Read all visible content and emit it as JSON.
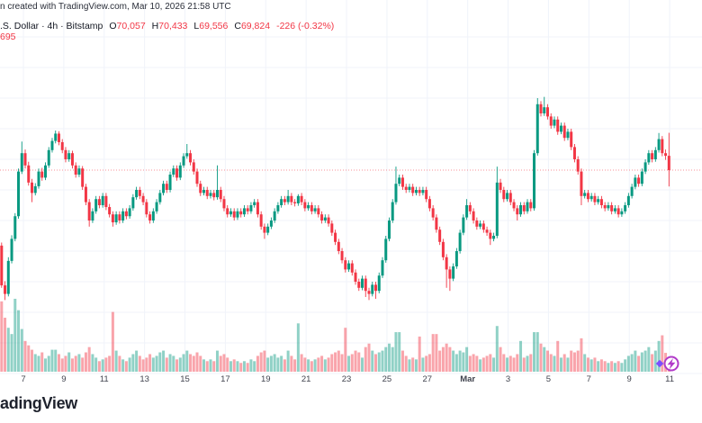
{
  "attribution": "n created with TradingView.com, Mar 10, 2026 21:58 UTC",
  "header": {
    "symbol_text": ".S. Dollar · 4h · Bitstamp",
    "ohlc": [
      {
        "label": "O",
        "value": "70,057"
      },
      {
        "label": "H",
        "value": "70,433"
      },
      {
        "label": "L",
        "value": "69,556"
      },
      {
        "label": "C",
        "value": "69,824"
      }
    ],
    "change_text": "-226 (-0.32%)",
    "volume_value": "695"
  },
  "watermark": "adingView",
  "colors": {
    "up": "#089981",
    "down": "#f23645",
    "grid": "#f0f3fa",
    "price_line": "#f23645",
    "axis_text": "#40434e",
    "marker_ring": "#b13ac9",
    "marker_diamond": "#7c4dff"
  },
  "event_marker": {
    "icon": "lightning-bolt"
  },
  "chart_data": {
    "type": "candlestick",
    "interval": "4h",
    "exchange": "Bitstamp",
    "last_candle": {
      "open": 70057,
      "high": 70433,
      "low": 69556,
      "close": 69824,
      "change": -226,
      "change_pct": -0.32
    },
    "price_line": 69824,
    "ylim": [
      67600,
      71800
    ],
    "grid": true,
    "x_ticks": [
      "7",
      "9",
      "11",
      "13",
      "15",
      "17",
      "19",
      "21",
      "23",
      "25",
      "27",
      "Mar",
      "3",
      "5",
      "7",
      "9",
      "11"
    ],
    "columns": [
      "open",
      "high",
      "low",
      "close",
      "volume"
    ],
    "candles": [
      [
        68590,
        68640,
        67900,
        67940,
        5600
      ],
      [
        67940,
        68010,
        67700,
        67800,
        4300
      ],
      [
        67800,
        68400,
        67760,
        68340,
        3500
      ],
      [
        68340,
        68760,
        68300,
        68700,
        3000
      ],
      [
        68700,
        69120,
        68660,
        69070,
        5810
      ],
      [
        69070,
        69850,
        69030,
        69800,
        4900
      ],
      [
        69800,
        70290,
        69760,
        70100,
        3400
      ],
      [
        70100,
        70160,
        69850,
        69900,
        2450
      ],
      [
        69900,
        69960,
        69570,
        69620,
        2100
      ],
      [
        69620,
        69680,
        69300,
        69450,
        1750
      ],
      [
        69450,
        69610,
        69410,
        69560,
        1400
      ],
      [
        69560,
        69850,
        69520,
        69800,
        1260
      ],
      [
        69800,
        69860,
        69650,
        69700,
        1540
      ],
      [
        69700,
        69950,
        69660,
        69900,
        1050
      ],
      [
        69900,
        70200,
        69860,
        70150,
        1260
      ],
      [
        70150,
        70350,
        70110,
        70300,
        1750
      ],
      [
        70300,
        70470,
        70260,
        70420,
        1750
      ],
      [
        70420,
        70460,
        70230,
        70280,
        1400
      ],
      [
        70280,
        70330,
        70100,
        70150,
        1050
      ],
      [
        70150,
        70200,
        69950,
        70000,
        1260
      ],
      [
        70000,
        70150,
        69960,
        70100,
        1540
      ],
      [
        70100,
        70140,
        69850,
        69900,
        1050
      ],
      [
        69900,
        69950,
        69700,
        69750,
        1260
      ],
      [
        69750,
        69900,
        69710,
        69850,
        1400
      ],
      [
        69850,
        69890,
        69500,
        69550,
        1120
      ],
      [
        69550,
        69600,
        69250,
        69300,
        1540
      ],
      [
        69300,
        69350,
        68900,
        69000,
        1960
      ],
      [
        69000,
        69200,
        68960,
        69150,
        1400
      ],
      [
        69150,
        69400,
        69110,
        69350,
        1120
      ],
      [
        69350,
        69400,
        69200,
        69250,
        840
      ],
      [
        69250,
        69450,
        69210,
        69400,
        980
      ],
      [
        69400,
        69450,
        69170,
        69220,
        1120
      ],
      [
        69220,
        69270,
        69050,
        69100,
        1260
      ],
      [
        69100,
        69150,
        68900,
        68970,
        4760
      ],
      [
        68970,
        69150,
        68930,
        69100,
        1680
      ],
      [
        69100,
        69150,
        68950,
        69000,
        1260
      ],
      [
        69000,
        69200,
        68960,
        69150,
        980
      ],
      [
        69150,
        69200,
        69020,
        69070,
        840
      ],
      [
        69070,
        69250,
        69030,
        69200,
        1120
      ],
      [
        69200,
        69430,
        69160,
        69380,
        1400
      ],
      [
        69380,
        69550,
        69340,
        69500,
        1680
      ],
      [
        69500,
        69550,
        69350,
        69400,
        1260
      ],
      [
        69400,
        69450,
        69250,
        69300,
        980
      ],
      [
        69300,
        69350,
        69050,
        69100,
        1120
      ],
      [
        69100,
        69150,
        68950,
        69000,
        1400
      ],
      [
        69000,
        69200,
        68960,
        69150,
        1120
      ],
      [
        69150,
        69350,
        69110,
        69300,
        1260
      ],
      [
        69300,
        69500,
        69260,
        69450,
        1540
      ],
      [
        69450,
        69650,
        69410,
        69600,
        1680
      ],
      [
        69600,
        69650,
        69450,
        69500,
        1120
      ],
      [
        69500,
        69800,
        69460,
        69750,
        1400
      ],
      [
        69750,
        69900,
        69710,
        69850,
        1260
      ],
      [
        69850,
        69900,
        69650,
        69700,
        980
      ],
      [
        69700,
        69950,
        69660,
        69900,
        1120
      ],
      [
        69900,
        70100,
        69860,
        70050,
        1400
      ],
      [
        70050,
        70250,
        70010,
        70100,
        1680
      ],
      [
        70100,
        70150,
        69900,
        69950,
        1400
      ],
      [
        69950,
        70000,
        69750,
        69800,
        1260
      ],
      [
        69800,
        69850,
        69550,
        69600,
        1540
      ],
      [
        69600,
        69650,
        69400,
        69450,
        1260
      ],
      [
        69450,
        69550,
        69410,
        69500,
        980
      ],
      [
        69500,
        69550,
        69350,
        69400,
        840
      ],
      [
        69400,
        69500,
        69360,
        69450,
        980
      ],
      [
        69450,
        69500,
        69330,
        69380,
        840
      ],
      [
        69380,
        69900,
        69340,
        69500,
        1680
      ],
      [
        69500,
        69550,
        69300,
        69350,
        1260
      ],
      [
        69350,
        69400,
        69150,
        69200,
        1400
      ],
      [
        69200,
        69250,
        69050,
        69100,
        1120
      ],
      [
        69100,
        69200,
        69060,
        69150,
        840
      ],
      [
        69150,
        69200,
        69000,
        69050,
        980
      ],
      [
        69050,
        69200,
        69010,
        69150,
        840
      ],
      [
        69150,
        69200,
        69050,
        69100,
        700
      ],
      [
        69100,
        69250,
        69060,
        69200,
        840
      ],
      [
        69200,
        69250,
        69100,
        69150,
        700
      ],
      [
        69150,
        69300,
        69110,
        69250,
        980
      ],
      [
        69250,
        69350,
        69210,
        69300,
        840
      ],
      [
        69300,
        69350,
        69050,
        69100,
        1260
      ],
      [
        69100,
        69150,
        68850,
        68900,
        1540
      ],
      [
        68900,
        68950,
        68700,
        68800,
        1680
      ],
      [
        68800,
        68950,
        68760,
        68900,
        1120
      ],
      [
        68900,
        69050,
        68860,
        69000,
        1260
      ],
      [
        69000,
        69200,
        68960,
        69150,
        1400
      ],
      [
        69150,
        69300,
        69110,
        69250,
        1120
      ],
      [
        69250,
        69400,
        69210,
        69350,
        1260
      ],
      [
        69350,
        69400,
        69250,
        69300,
        980
      ],
      [
        69300,
        69500,
        69260,
        69400,
        1680
      ],
      [
        69400,
        69450,
        69250,
        69300,
        1260
      ],
      [
        69300,
        69350,
        69230,
        69280,
        980
      ],
      [
        69280,
        69430,
        69240,
        69400,
        3850
      ],
      [
        69400,
        69450,
        69250,
        69300,
        1400
      ],
      [
        69300,
        69350,
        69150,
        69200,
        1120
      ],
      [
        69200,
        69300,
        69160,
        69250,
        980
      ],
      [
        69250,
        69300,
        69100,
        69150,
        840
      ],
      [
        69150,
        69250,
        69110,
        69200,
        980
      ],
      [
        69200,
        69250,
        69050,
        69100,
        1120
      ],
      [
        69100,
        69150,
        68950,
        69000,
        1260
      ],
      [
        69000,
        69100,
        68960,
        69050,
        980
      ],
      [
        69050,
        69100,
        68900,
        68950,
        1120
      ],
      [
        68950,
        69000,
        68750,
        68800,
        1400
      ],
      [
        68800,
        68850,
        68600,
        68650,
        1540
      ],
      [
        68650,
        68700,
        68450,
        68500,
        1680
      ],
      [
        68500,
        68550,
        68300,
        68350,
        1400
      ],
      [
        68350,
        68400,
        68150,
        68200,
        3500
      ],
      [
        68200,
        68350,
        68160,
        68300,
        1260
      ],
      [
        68300,
        68350,
        68100,
        68150,
        1400
      ],
      [
        68150,
        68200,
        67950,
        68000,
        1680
      ],
      [
        68000,
        68050,
        67850,
        67900,
        1540
      ],
      [
        67900,
        68100,
        67860,
        68050,
        1120
      ],
      [
        68050,
        68100,
        67750,
        67850,
        1960
      ],
      [
        67850,
        67900,
        67700,
        67800,
        2240
      ],
      [
        67800,
        68000,
        67760,
        67950,
        1680
      ],
      [
        67950,
        68000,
        67720,
        67850,
        1400
      ],
      [
        67850,
        68150,
        67810,
        68100,
        1540
      ],
      [
        68100,
        68400,
        68060,
        68350,
        1680
      ],
      [
        68350,
        68750,
        68310,
        68700,
        1960
      ],
      [
        68700,
        69050,
        68660,
        69000,
        2240
      ],
      [
        69000,
        69350,
        68960,
        69300,
        1960
      ],
      [
        69300,
        69880,
        69260,
        69600,
        3150
      ],
      [
        69600,
        69750,
        69560,
        69700,
        3150
      ],
      [
        69700,
        69750,
        69500,
        69550,
        1680
      ],
      [
        69550,
        69600,
        69450,
        69500,
        1260
      ],
      [
        69500,
        69600,
        69460,
        69550,
        980
      ],
      [
        69550,
        69600,
        69400,
        69450,
        1120
      ],
      [
        69450,
        69550,
        69410,
        69500,
        980
      ],
      [
        69500,
        69550,
        69400,
        69450,
        2800
      ],
      [
        69450,
        69550,
        69410,
        69500,
        1120
      ],
      [
        69500,
        69550,
        69300,
        69350,
        1260
      ],
      [
        69350,
        69400,
        69150,
        69200,
        1400
      ],
      [
        69200,
        69250,
        69000,
        69050,
        3000
      ],
      [
        69050,
        69100,
        68800,
        68850,
        3000
      ],
      [
        68850,
        68900,
        68600,
        68650,
        1680
      ],
      [
        68650,
        68700,
        68350,
        68400,
        1960
      ],
      [
        68400,
        68450,
        67900,
        68200,
        2240
      ],
      [
        68200,
        68250,
        67850,
        68050,
        1960
      ],
      [
        68050,
        68300,
        68010,
        68250,
        1680
      ],
      [
        68250,
        68550,
        68210,
        68500,
        1400
      ],
      [
        68500,
        68850,
        68460,
        68800,
        1680
      ],
      [
        68800,
        69100,
        68760,
        69050,
        1540
      ],
      [
        69050,
        69350,
        69010,
        69250,
        1960
      ],
      [
        69250,
        69300,
        69100,
        69150,
        1260
      ],
      [
        69150,
        69200,
        68950,
        69000,
        1400
      ],
      [
        69000,
        69050,
        68850,
        68900,
        1260
      ],
      [
        68900,
        69000,
        68860,
        68950,
        980
      ],
      [
        68950,
        69000,
        68800,
        68850,
        1120
      ],
      [
        68850,
        68900,
        68750,
        68800,
        1260
      ],
      [
        68800,
        68850,
        68600,
        68700,
        1400
      ],
      [
        68700,
        68800,
        68660,
        68750,
        1120
      ],
      [
        68750,
        69880,
        68710,
        69620,
        3640
      ],
      [
        69620,
        69680,
        69450,
        69500,
        1960
      ],
      [
        69500,
        69550,
        69300,
        69350,
        1400
      ],
      [
        69350,
        69500,
        69310,
        69450,
        1120
      ],
      [
        69450,
        69500,
        69250,
        69300,
        1260
      ],
      [
        69300,
        69350,
        69150,
        69200,
        1120
      ],
      [
        69200,
        69250,
        69000,
        69100,
        1400
      ],
      [
        69100,
        69300,
        69060,
        69250,
        2450
      ],
      [
        69250,
        69300,
        69100,
        69150,
        1120
      ],
      [
        69150,
        69350,
        69110,
        69300,
        1260
      ],
      [
        69300,
        69350,
        69150,
        69200,
        1400
      ],
      [
        69200,
        70150,
        69160,
        70100,
        3150
      ],
      [
        70100,
        71000,
        70060,
        70900,
        3150
      ],
      [
        70900,
        70950,
        70700,
        70750,
        2240
      ],
      [
        70750,
        71020,
        70710,
        70850,
        1960
      ],
      [
        70850,
        70900,
        70650,
        70700,
        1680
      ],
      [
        70700,
        70750,
        70500,
        70550,
        1400
      ],
      [
        70550,
        70700,
        70510,
        70650,
        1260
      ],
      [
        70650,
        70700,
        70400,
        70450,
        2450
      ],
      [
        70450,
        70600,
        70410,
        70550,
        1120
      ],
      [
        70550,
        70600,
        70300,
        70350,
        1400
      ],
      [
        70350,
        70500,
        70310,
        70450,
        1120
      ],
      [
        70450,
        70500,
        70150,
        70200,
        1680
      ],
      [
        70200,
        70250,
        69950,
        70000,
        1540
      ],
      [
        70000,
        70050,
        69750,
        69800,
        1680
      ],
      [
        69800,
        69850,
        69250,
        69400,
        2660
      ],
      [
        69400,
        69500,
        69360,
        69450,
        1400
      ],
      [
        69450,
        69500,
        69300,
        69350,
        1120
      ],
      [
        69350,
        69450,
        69310,
        69400,
        980
      ],
      [
        69400,
        69450,
        69250,
        69300,
        1120
      ],
      [
        69300,
        69400,
        69260,
        69350,
        840
      ],
      [
        69350,
        69400,
        69200,
        69250,
        980
      ],
      [
        69250,
        69300,
        69150,
        69200,
        840
      ],
      [
        69200,
        69300,
        69160,
        69250,
        700
      ],
      [
        69250,
        69300,
        69100,
        69150,
        840
      ],
      [
        69150,
        69250,
        69110,
        69200,
        700
      ],
      [
        69200,
        69250,
        69050,
        69100,
        840
      ],
      [
        69100,
        69200,
        69060,
        69150,
        700
      ],
      [
        69150,
        69300,
        69110,
        69250,
        980
      ],
      [
        69250,
        69450,
        69210,
        69400,
        1260
      ],
      [
        69400,
        69600,
        69360,
        69550,
        1400
      ],
      [
        69550,
        69750,
        69510,
        69700,
        1680
      ],
      [
        69700,
        69750,
        69550,
        69600,
        1260
      ],
      [
        69600,
        69850,
        69560,
        69800,
        1540
      ],
      [
        69800,
        70000,
        69760,
        69950,
        1680
      ],
      [
        69950,
        70150,
        69910,
        70100,
        1960
      ],
      [
        70100,
        70150,
        69950,
        70000,
        1400
      ],
      [
        70000,
        70200,
        69960,
        70150,
        1680
      ],
      [
        70150,
        70430,
        70110,
        70330,
        2450
      ],
      [
        70330,
        70380,
        70050,
        70100,
        2900
      ],
      [
        70100,
        70160,
        69990,
        70057,
        1500
      ],
      [
        70057,
        70433,
        69556,
        69824,
        695
      ]
    ]
  }
}
